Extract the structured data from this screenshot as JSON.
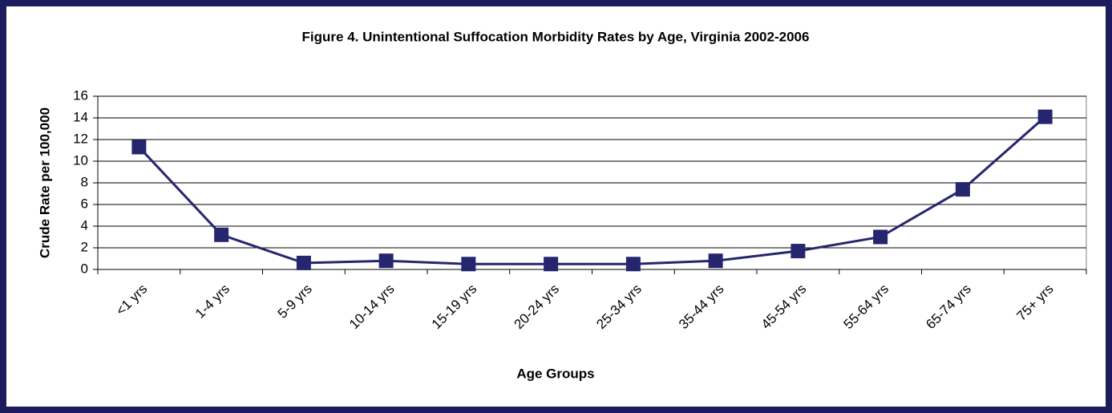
{
  "chart_data": {
    "type": "line",
    "title": "Figure 4. Unintentional Suffocation Morbidity Rates by Age, Virginia 2002-2006",
    "x_label": "Age Groups",
    "y_label": "Crude Rate per 100,000",
    "categories": [
      "<1 yrs",
      "1-4 yrs",
      "5-9 yrs",
      "10-14 yrs",
      "15-19 yrs",
      "20-24 yrs",
      "25-34 yrs",
      "35-44 yrs",
      "45-54 yrs",
      "55-64 yrs",
      "65-74 yrs",
      "75+ yrs"
    ],
    "series": [
      {
        "color": "#26266e",
        "values": [
          11.3,
          3.2,
          0.6,
          0.8,
          0.5,
          0.5,
          0.5,
          0.8,
          1.7,
          3.0,
          7.4,
          14.1
        ]
      }
    ],
    "ylim": [
      0,
      16
    ],
    "yticks": [
      0,
      2,
      4,
      6,
      8,
      10,
      12,
      14,
      16
    ],
    "grid": true
  }
}
